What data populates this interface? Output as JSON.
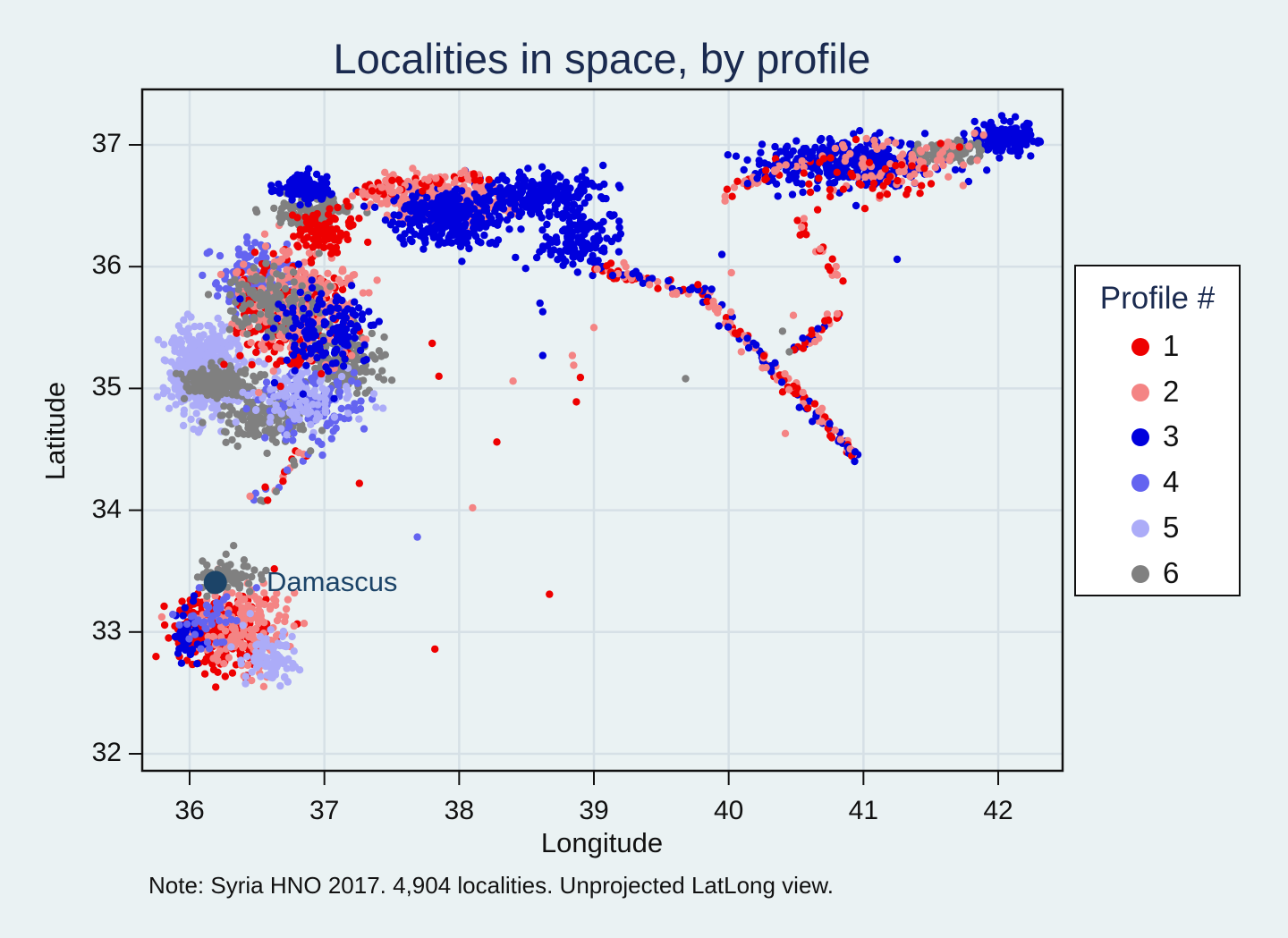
{
  "chart_data": {
    "type": "scatter",
    "title": "Localities in space, by profile",
    "xlabel": "Longitude",
    "ylabel": "Latitude",
    "note": "Note: Syria HNO 2017. 4,904 localities. Unprojected LatLong view.",
    "xlim": [
      35.65,
      42.5
    ],
    "ylim": [
      31.85,
      37.45
    ],
    "xticks": [
      36,
      37,
      38,
      39,
      40,
      41,
      42
    ],
    "yticks": [
      32,
      33,
      34,
      35,
      36,
      37
    ],
    "grid": true,
    "legend_position": "right",
    "legend": {
      "title": "Profile #",
      "entries": [
        {
          "label": "1",
          "color": "#ee0000"
        },
        {
          "label": "2",
          "color": "#f48484"
        },
        {
          "label": "3",
          "color": "#0000dd"
        },
        {
          "label": "4",
          "color": "#6464f0"
        },
        {
          "label": "5",
          "color": "#acacf8"
        },
        {
          "label": "6",
          "color": "#808080"
        }
      ]
    },
    "annotation": {
      "label": "Damascus",
      "lon": 36.29,
      "lat": 33.51
    },
    "total_points": 4904,
    "clusters": [
      {
        "profile": 5,
        "lon": 36.1,
        "lat": 35.15,
        "slon": 0.22,
        "slat": 0.3,
        "n": 520
      },
      {
        "profile": 6,
        "lon": 36.2,
        "lat": 35.05,
        "slon": 0.22,
        "slat": 0.1,
        "n": 200
      },
      {
        "profile": 6,
        "lon": 36.55,
        "lat": 34.75,
        "slon": 0.25,
        "slat": 0.15,
        "n": 160
      },
      {
        "profile": 6,
        "lon": 37.15,
        "lat": 35.2,
        "slon": 0.25,
        "slat": 0.2,
        "n": 160
      },
      {
        "profile": 4,
        "lon": 36.5,
        "lat": 35.9,
        "slon": 0.25,
        "slat": 0.25,
        "n": 180
      },
      {
        "profile": 4,
        "lon": 36.9,
        "lat": 34.9,
        "slon": 0.3,
        "slat": 0.25,
        "n": 150
      },
      {
        "profile": 5,
        "lon": 36.8,
        "lat": 34.95,
        "slon": 0.35,
        "slat": 0.2,
        "n": 120
      },
      {
        "profile": 1,
        "lon": 36.7,
        "lat": 35.6,
        "slon": 0.3,
        "slat": 0.35,
        "n": 260
      },
      {
        "profile": 2,
        "lon": 36.8,
        "lat": 35.7,
        "slon": 0.35,
        "slat": 0.4,
        "n": 260
      },
      {
        "profile": 6,
        "lon": 36.6,
        "lat": 35.7,
        "slon": 0.3,
        "slat": 0.25,
        "n": 150
      },
      {
        "profile": 3,
        "lon": 37.0,
        "lat": 35.45,
        "slon": 0.3,
        "slat": 0.3,
        "n": 150
      },
      {
        "profile": 6,
        "lon": 36.9,
        "lat": 36.45,
        "slon": 0.2,
        "slat": 0.12,
        "n": 120
      },
      {
        "profile": 3,
        "lon": 36.85,
        "lat": 36.65,
        "slon": 0.15,
        "slat": 0.1,
        "n": 120
      },
      {
        "profile": 1,
        "lon": 37.0,
        "lat": 36.3,
        "slon": 0.2,
        "slat": 0.15,
        "n": 90
      },
      {
        "profile": 2,
        "lon": 37.9,
        "lat": 36.55,
        "slon": 0.45,
        "slat": 0.15,
        "n": 230
      },
      {
        "profile": 3,
        "lon": 37.9,
        "lat": 36.4,
        "slon": 0.3,
        "slat": 0.2,
        "n": 300
      },
      {
        "profile": 3,
        "lon": 38.6,
        "lat": 36.6,
        "slon": 0.35,
        "slat": 0.15,
        "n": 230
      },
      {
        "profile": 3,
        "lon": 38.9,
        "lat": 36.2,
        "slon": 0.3,
        "slat": 0.2,
        "n": 120
      },
      {
        "profile": 3,
        "lon": 40.9,
        "lat": 36.85,
        "slon": 0.55,
        "slat": 0.15,
        "n": 380
      },
      {
        "profile": 3,
        "lon": 42.05,
        "lat": 37.05,
        "slon": 0.2,
        "slat": 0.12,
        "n": 160
      },
      {
        "profile": 6,
        "lon": 41.65,
        "lat": 36.95,
        "slon": 0.18,
        "slat": 0.07,
        "n": 110
      },
      {
        "profile": 2,
        "lon": 41.3,
        "lat": 36.85,
        "slon": 0.5,
        "slat": 0.2,
        "n": 80
      },
      {
        "profile": 1,
        "lon": 41.0,
        "lat": 36.7,
        "slon": 0.6,
        "slat": 0.25,
        "n": 40
      },
      {
        "profile": 1,
        "lon": 36.2,
        "lat": 33.0,
        "slon": 0.28,
        "slat": 0.25,
        "n": 280
      },
      {
        "profile": 2,
        "lon": 36.4,
        "lat": 33.05,
        "slon": 0.3,
        "slat": 0.3,
        "n": 170
      },
      {
        "profile": 5,
        "lon": 36.6,
        "lat": 32.8,
        "slon": 0.2,
        "slat": 0.2,
        "n": 90
      },
      {
        "profile": 6,
        "lon": 36.3,
        "lat": 33.45,
        "slon": 0.18,
        "slat": 0.12,
        "n": 70
      },
      {
        "profile": 3,
        "lon": 35.98,
        "lat": 33.0,
        "slon": 0.08,
        "slat": 0.2,
        "n": 40
      },
      {
        "profile": 4,
        "lon": 36.15,
        "lat": 33.1,
        "slon": 0.2,
        "slat": 0.2,
        "n": 40
      }
    ],
    "lines": [
      {
        "profiles": [
          3,
          2,
          1
        ],
        "from": [
          39.0,
          36.0
        ],
        "to": [
          39.9,
          35.75
        ],
        "n": 70
      },
      {
        "profiles": [
          1,
          2,
          3
        ],
        "from": [
          39.85,
          35.7
        ],
        "to": [
          40.95,
          34.45
        ],
        "n": 150
      },
      {
        "profiles": [
          3,
          1,
          2
        ],
        "from": [
          40.5,
          35.3
        ],
        "to": [
          40.85,
          35.65
        ],
        "n": 30
      },
      {
        "profiles": [
          1,
          2
        ],
        "from": [
          40.85,
          35.85
        ],
        "to": [
          40.5,
          36.4
        ],
        "n": 20
      },
      {
        "profiles": [
          1,
          2,
          4,
          6
        ],
        "from": [
          36.5,
          34.05
        ],
        "to": [
          36.95,
          34.6
        ],
        "n": 30
      },
      {
        "profiles": [
          3,
          2,
          1
        ],
        "from": [
          39.95,
          36.6
        ],
        "to": [
          40.6,
          36.9
        ],
        "n": 40
      },
      {
        "profiles": [
          2,
          1
        ],
        "from": [
          37.2,
          36.6
        ],
        "to": [
          38.2,
          36.75
        ],
        "n": 80
      }
    ],
    "outliers": [
      {
        "profile": 1,
        "lon": 37.8,
        "lat": 35.37
      },
      {
        "profile": 1,
        "lon": 38.28,
        "lat": 34.56
      },
      {
        "profile": 1,
        "lon": 37.26,
        "lat": 34.22
      },
      {
        "profile": 2,
        "lon": 38.1,
        "lat": 34.02
      },
      {
        "profile": 4,
        "lon": 37.69,
        "lat": 33.78
      },
      {
        "profile": 1,
        "lon": 38.67,
        "lat": 33.31
      },
      {
        "profile": 1,
        "lon": 37.82,
        "lat": 32.86
      },
      {
        "profile": 2,
        "lon": 38.4,
        "lat": 35.06
      },
      {
        "profile": 3,
        "lon": 38.62,
        "lat": 35.27
      },
      {
        "profile": 2,
        "lon": 38.84,
        "lat": 35.27
      },
      {
        "profile": 2,
        "lon": 38.85,
        "lat": 35.19
      },
      {
        "profile": 1,
        "lon": 38.9,
        "lat": 35.09
      },
      {
        "profile": 1,
        "lon": 38.87,
        "lat": 34.89
      },
      {
        "profile": 2,
        "lon": 39.0,
        "lat": 35.5
      },
      {
        "profile": 6,
        "lon": 39.68,
        "lat": 35.08
      },
      {
        "profile": 2,
        "lon": 40.42,
        "lat": 34.63
      },
      {
        "profile": 3,
        "lon": 41.25,
        "lat": 36.06
      },
      {
        "profile": 3,
        "lon": 38.6,
        "lat": 35.7
      },
      {
        "profile": 3,
        "lon": 38.62,
        "lat": 35.63
      },
      {
        "profile": 2,
        "lon": 40.48,
        "lat": 35.6
      },
      {
        "profile": 6,
        "lon": 40.4,
        "lat": 35.47
      },
      {
        "profile": 6,
        "lon": 40.45,
        "lat": 35.3
      },
      {
        "profile": 1,
        "lon": 37.85,
        "lat": 35.1
      },
      {
        "profile": 3,
        "lon": 39.95,
        "lat": 36.1
      },
      {
        "profile": 2,
        "lon": 40.02,
        "lat": 35.95
      }
    ]
  },
  "legend_title": "Profile #",
  "legend_labels": [
    "1",
    "2",
    "3",
    "4",
    "5",
    "6"
  ]
}
